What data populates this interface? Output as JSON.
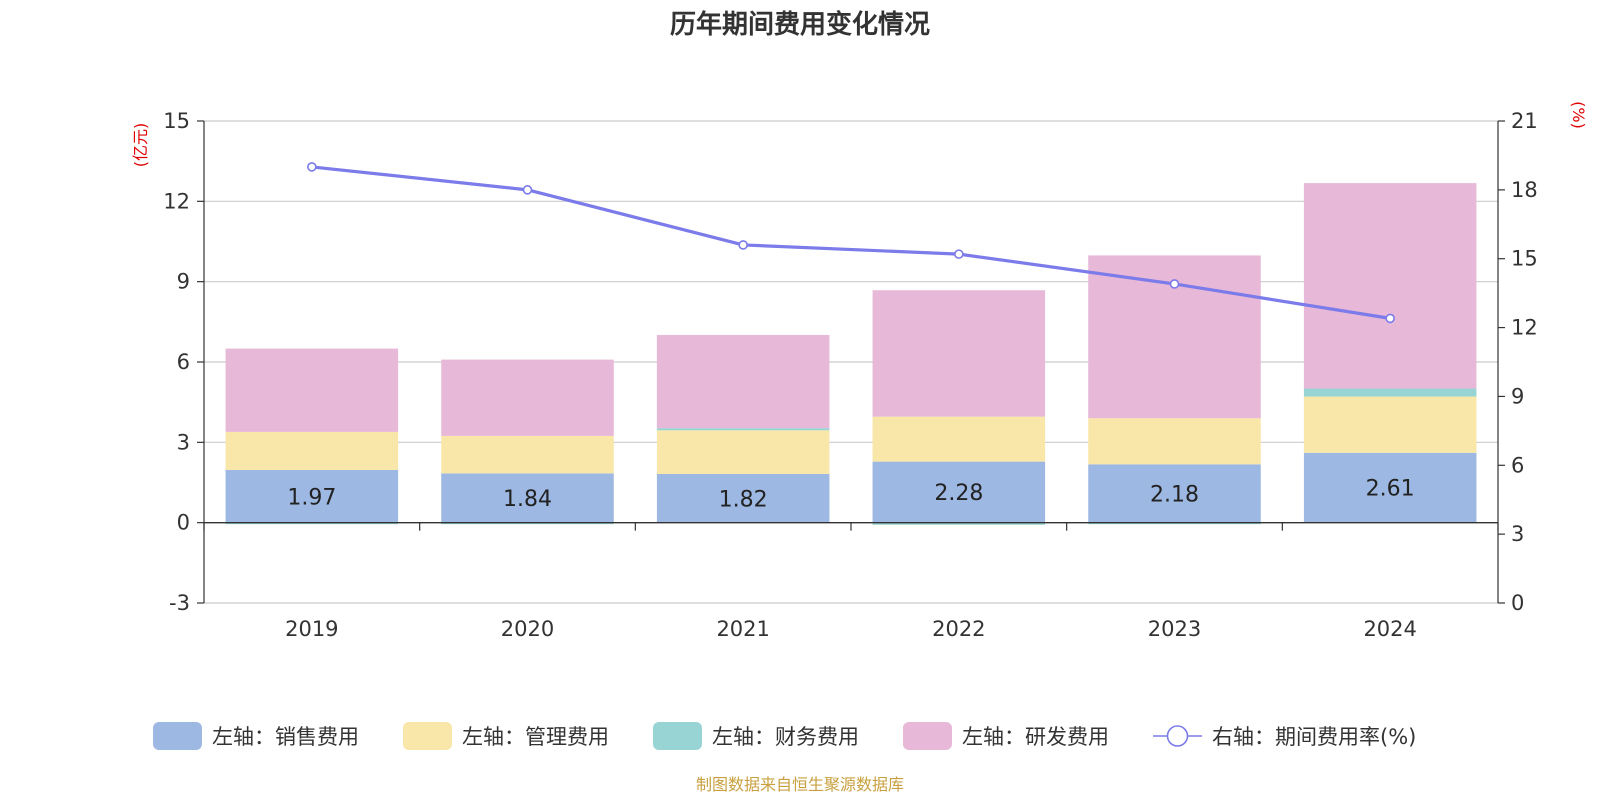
{
  "chart_data": {
    "type": "bar",
    "title": "历年期间费用变化情况",
    "categories": [
      "2019",
      "2020",
      "2021",
      "2022",
      "2023",
      "2024"
    ],
    "left_axis": {
      "unit_label": "(亿元)",
      "ylim": [
        -3,
        15
      ],
      "ticks": [
        -3,
        0,
        3,
        6,
        9,
        12,
        15
      ]
    },
    "right_axis": {
      "unit_label": "(%)",
      "ylim": [
        0,
        21
      ],
      "ticks": [
        0,
        3,
        6,
        9,
        12,
        15,
        18,
        21
      ]
    },
    "series": [
      {
        "name": "左轴：销售费用",
        "type": "bar",
        "stack": "fee",
        "axis": "left",
        "color": "#9db8e2",
        "values": [
          1.97,
          1.84,
          1.82,
          2.28,
          2.18,
          2.61
        ],
        "show_labels": true
      },
      {
        "name": "左轴：管理费用",
        "type": "bar",
        "stack": "fee",
        "axis": "left",
        "color": "#f8e7a8",
        "values": [
          1.42,
          1.4,
          1.63,
          1.68,
          1.72,
          2.1
        ],
        "show_labels": false
      },
      {
        "name": "左轴：财务费用",
        "type": "bar",
        "stack": "fee",
        "axis": "left",
        "color": "#98d4d4",
        "values": [
          -0.03,
          -0.02,
          0.08,
          -0.08,
          -0.01,
          0.3
        ],
        "show_labels": false
      },
      {
        "name": "左轴：研发费用",
        "type": "bar",
        "stack": "fee",
        "axis": "left",
        "color": "#e8b8d8",
        "values": [
          3.11,
          2.85,
          3.48,
          4.72,
          6.08,
          7.67
        ],
        "show_labels": false
      },
      {
        "name": "右轴：期间费用率(%)",
        "type": "line",
        "axis": "right",
        "color": "#7b7bea",
        "values": [
          19.0,
          18.0,
          15.6,
          15.2,
          13.9,
          12.4
        ]
      }
    ],
    "grid": true,
    "legend_position": "bottom"
  },
  "source_note": "制图数据来自恒生聚源数据库"
}
